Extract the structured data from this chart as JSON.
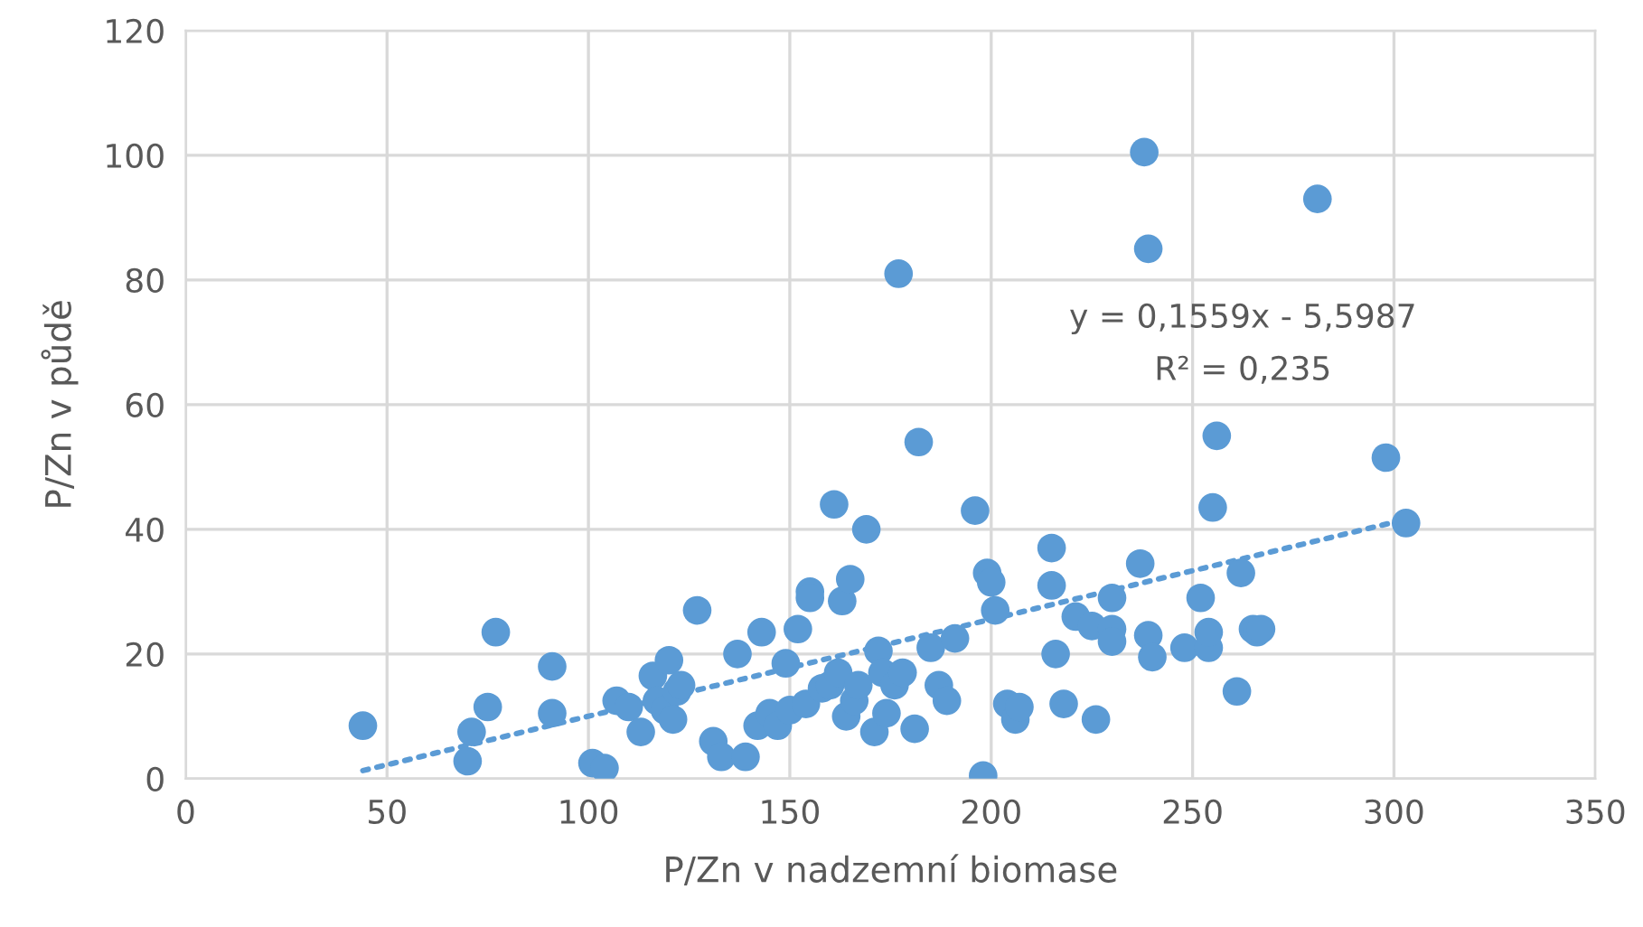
{
  "chart_data": {
    "type": "scatter",
    "xlabel": "P/Zn v nadzemní biomase",
    "ylabel": "P/Zn v půdě",
    "xlim": [
      0,
      350
    ],
    "ylim": [
      0,
      120
    ],
    "xticks": [
      0,
      50,
      100,
      150,
      200,
      250,
      300,
      350
    ],
    "yticks": [
      0,
      20,
      40,
      60,
      80,
      100,
      120
    ],
    "grid": true,
    "annotations": [
      "y = 0,1559x - 5,5987",
      "R² = 0,235"
    ],
    "series": [
      {
        "marker": "circle",
        "color": "#5b9bd5",
        "x": [
          44,
          71,
          70,
          75,
          77,
          91,
          91,
          101,
          104,
          107,
          110,
          113,
          116,
          117,
          119,
          120,
          121,
          122,
          123,
          127,
          131,
          133,
          137,
          139,
          142,
          143,
          145,
          147,
          149,
          150,
          152,
          154,
          155,
          155,
          158,
          160,
          161,
          162,
          163,
          164,
          165,
          166,
          167,
          169,
          171,
          172,
          173,
          174,
          176,
          177,
          178,
          181,
          182,
          185,
          187,
          189,
          191,
          196,
          198,
          199,
          200,
          201,
          204,
          206,
          207,
          215,
          215,
          216,
          218,
          221,
          225,
          226,
          230,
          230,
          230,
          237,
          238,
          239,
          239,
          240,
          248,
          252,
          254,
          254,
          255,
          256,
          261,
          262,
          265,
          266,
          267,
          281,
          298,
          303
        ],
        "values": [
          8.5,
          7.5,
          2.8,
          11.5,
          23.5,
          18,
          10.5,
          2.5,
          1.7,
          12.5,
          11.5,
          7.5,
          16.5,
          12.5,
          11,
          19,
          9.5,
          14,
          15,
          27,
          6,
          3.5,
          20,
          3.5,
          8.5,
          23.5,
          10.5,
          8.5,
          18.5,
          11,
          24,
          12,
          30,
          29,
          14.5,
          15,
          44,
          17,
          28.5,
          10,
          32,
          12.5,
          15,
          40,
          7.5,
          20.5,
          17,
          10.5,
          15,
          81,
          17,
          8,
          54,
          21,
          15,
          12.5,
          22.5,
          43,
          0.5,
          33,
          31.5,
          27,
          12,
          9.5,
          11.5,
          37,
          31,
          20,
          12,
          26,
          24.5,
          9.5,
          24,
          22,
          29,
          34.5,
          100.5,
          85,
          23,
          19.5,
          21,
          29,
          21,
          23.5,
          43.5,
          55,
          14,
          33,
          24,
          23.5,
          24,
          93,
          51.5,
          41
        ]
      },
      {
        "type": "line",
        "color": "#5b9bd5",
        "line_style": "dotted",
        "marker": "none",
        "x": [
          44,
          303
        ],
        "values": [
          1.3,
          41.6
        ]
      }
    ]
  }
}
